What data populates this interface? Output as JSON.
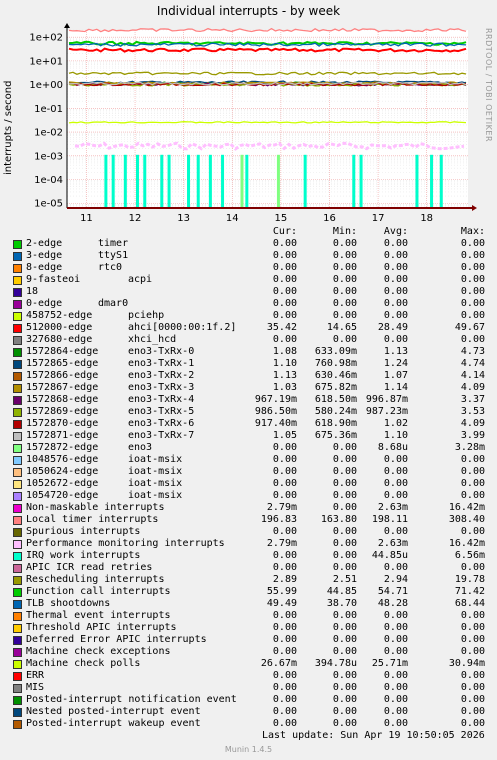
{
  "page": {
    "title": "Individual interrupts - by week",
    "ylabel": "interrupts / second",
    "side_label": "RRDTOOL / TOBI OETIKER",
    "version": "Munin 1.4.5",
    "last_update": "Last update:  Sun Apr 19 10:50:05 2026"
  },
  "legend_header": {
    "cur": "Cur:",
    "min": "Min:",
    "avg": "Avg:",
    "max": "Max:"
  },
  "chart_data": {
    "type": "line",
    "title": "Individual interrupts - by week",
    "ylabel": "interrupts / second",
    "yscale": "log",
    "ylim": [
      6.3e-06,
      200
    ],
    "yticks": [
      {
        "v": 100,
        "label": "1e+02"
      },
      {
        "v": 10,
        "label": "1e+01"
      },
      {
        "v": 1,
        "label": "1e+00"
      },
      {
        "v": 0.1,
        "label": "1e-01"
      },
      {
        "v": 0.01,
        "label": "1e-02"
      },
      {
        "v": 0.001,
        "label": "1e-03"
      },
      {
        "v": 0.0001,
        "label": "1e-04"
      },
      {
        "v": 1e-05,
        "label": "1e-05"
      }
    ],
    "xticks": [
      "11",
      "12",
      "13",
      "14",
      "15",
      "16",
      "17",
      "18"
    ],
    "grid": true,
    "series": [
      {
        "name": "2-edge timer",
        "color": "#00cc00",
        "cur": "0.00",
        "min": "0.00",
        "avg": "0.00",
        "max": "0.00",
        "level": null
      },
      {
        "name": "3-edge ttyS1",
        "color": "#0066b3",
        "cur": "0.00",
        "min": "0.00",
        "avg": "0.00",
        "max": "0.00",
        "level": null
      },
      {
        "name": "8-edge rtc0",
        "color": "#ff8000",
        "cur": "0.00",
        "min": "0.00",
        "avg": "0.00",
        "max": "0.00",
        "level": null
      },
      {
        "name": "9-fasteoi acpi",
        "color": "#ffcc00",
        "cur": "0.00",
        "min": "0.00",
        "avg": "0.00",
        "max": "0.00",
        "level": null
      },
      {
        "name": "18",
        "color": "#330099",
        "cur": "0.00",
        "min": "0.00",
        "avg": "0.00",
        "max": "0.00",
        "level": null
      },
      {
        "name": "0-edge dmar0",
        "color": "#990099",
        "cur": "0.00",
        "min": "0.00",
        "avg": "0.00",
        "max": "0.00",
        "level": null
      },
      {
        "name": "458752-edge pciehp",
        "color": "#ccff00",
        "cur": "0.00",
        "min": "0.00",
        "avg": "0.00",
        "max": "0.00",
        "level": null
      },
      {
        "name": "512000-edge ahci[0000:00:1f.2]",
        "color": "#ff0000",
        "cur": "35.42",
        "min": "14.65",
        "avg": "28.49",
        "max": "49.67",
        "level": 28.49
      },
      {
        "name": "327680-edge xhci_hcd",
        "color": "#808080",
        "cur": "0.00",
        "min": "0.00",
        "avg": "0.00",
        "max": "0.00",
        "level": null
      },
      {
        "name": "1572864-edge eno3-TxRx-0",
        "color": "#008f00",
        "cur": "1.08",
        "min": "633.09m",
        "avg": "1.13",
        "max": "4.73",
        "level": 1.13
      },
      {
        "name": "1572865-edge eno3-TxRx-1",
        "color": "#00487d",
        "cur": "1.10",
        "min": "760.98m",
        "avg": "1.24",
        "max": "4.74",
        "level": 1.24
      },
      {
        "name": "1572866-edge eno3-TxRx-2",
        "color": "#b35a00",
        "cur": "1.13",
        "min": "630.46m",
        "avg": "1.07",
        "max": "4.14",
        "level": 1.07
      },
      {
        "name": "1572867-edge eno3-TxRx-3",
        "color": "#b38f00",
        "cur": "1.03",
        "min": "675.82m",
        "avg": "1.14",
        "max": "4.09",
        "level": 1.14
      },
      {
        "name": "1572868-edge eno3-TxRx-4",
        "color": "#6b006b",
        "cur": "967.19m",
        "min": "618.50m",
        "avg": "996.87m",
        "max": "3.37",
        "level": 0.99687
      },
      {
        "name": "1572869-edge eno3-TxRx-5",
        "color": "#8fb300",
        "cur": "986.50m",
        "min": "580.24m",
        "avg": "987.23m",
        "max": "3.53",
        "level": 0.98723
      },
      {
        "name": "1572870-edge eno3-TxRx-6",
        "color": "#b30000",
        "cur": "917.40m",
        "min": "618.90m",
        "avg": "1.02",
        "max": "4.09",
        "level": 1.02
      },
      {
        "name": "1572871-edge eno3-TxRx-7",
        "color": "#bebebe",
        "cur": "1.05",
        "min": "675.36m",
        "avg": "1.10",
        "max": "3.99",
        "level": 1.1
      },
      {
        "name": "1572872-edge eno3",
        "color": "#80ff80",
        "cur": "0.00",
        "min": "0.00",
        "avg": "8.68u",
        "max": "3.28m",
        "level": null
      },
      {
        "name": "1048576-edge ioat-msix",
        "color": "#80c9ff",
        "cur": "0.00",
        "min": "0.00",
        "avg": "0.00",
        "max": "0.00",
        "level": null
      },
      {
        "name": "1050624-edge ioat-msix",
        "color": "#ffc080",
        "cur": "0.00",
        "min": "0.00",
        "avg": "0.00",
        "max": "0.00",
        "level": null
      },
      {
        "name": "1052672-edge ioat-msix",
        "color": "#ffe680",
        "cur": "0.00",
        "min": "0.00",
        "avg": "0.00",
        "max": "0.00",
        "level": null
      },
      {
        "name": "1054720-edge ioat-msix",
        "color": "#aa80ff",
        "cur": "0.00",
        "min": "0.00",
        "avg": "0.00",
        "max": "0.00",
        "level": null
      },
      {
        "name": "Non-maskable interrupts",
        "color": "#ee00cc",
        "cur": "2.79m",
        "min": "0.00",
        "avg": "2.63m",
        "max": "16.42m",
        "level": null
      },
      {
        "name": "Local timer interrupts",
        "color": "#ff8080",
        "cur": "196.83",
        "min": "163.80",
        "avg": "198.11",
        "max": "308.40",
        "level": 198.11
      },
      {
        "name": "Spurious interrupts",
        "color": "#666600",
        "cur": "0.00",
        "min": "0.00",
        "avg": "0.00",
        "max": "0.00",
        "level": null
      },
      {
        "name": "Performance monitoring interrupts",
        "color": "#ffbfff",
        "cur": "2.79m",
        "min": "0.00",
        "avg": "2.63m",
        "max": "16.42m",
        "level": null
      },
      {
        "name": "IRQ work interrupts",
        "color": "#00ffcc",
        "cur": "0.00",
        "min": "0.00",
        "avg": "44.85u",
        "max": "6.56m",
        "level": null
      },
      {
        "name": "APIC ICR read retries",
        "color": "#cc6699",
        "cur": "0.00",
        "min": "0.00",
        "avg": "0.00",
        "max": "0.00",
        "level": null
      },
      {
        "name": "Rescheduling interrupts",
        "color": "#999900",
        "cur": "2.89",
        "min": "2.51",
        "avg": "2.94",
        "max": "19.78",
        "level": 2.94
      },
      {
        "name": "Function call interrupts",
        "color": "#00cc00",
        "cur": "55.99",
        "min": "44.85",
        "avg": "54.71",
        "max": "71.42",
        "level": 54.71
      },
      {
        "name": "TLB shootdowns",
        "color": "#0066b3",
        "cur": "49.49",
        "min": "38.70",
        "avg": "48.28",
        "max": "68.44",
        "level": 48.28
      },
      {
        "name": "Thermal event interrupts",
        "color": "#ff8000",
        "cur": "0.00",
        "min": "0.00",
        "avg": "0.00",
        "max": "0.00",
        "level": null
      },
      {
        "name": "Threshold APIC interrupts",
        "color": "#ffcc00",
        "cur": "0.00",
        "min": "0.00",
        "avg": "0.00",
        "max": "0.00",
        "level": null
      },
      {
        "name": "Deferred Error APIC interrupts",
        "color": "#330099",
        "cur": "0.00",
        "min": "0.00",
        "avg": "0.00",
        "max": "0.00",
        "level": null
      },
      {
        "name": "Machine check exceptions",
        "color": "#990099",
        "cur": "0.00",
        "min": "0.00",
        "avg": "0.00",
        "max": "0.00",
        "level": null
      },
      {
        "name": "Machine check polls",
        "color": "#ccff00",
        "cur": "26.67m",
        "min": "394.78u",
        "avg": "25.71m",
        "max": "30.94m",
        "level": 0.02571
      },
      {
        "name": "ERR",
        "color": "#ff0000",
        "cur": "0.00",
        "min": "0.00",
        "avg": "0.00",
        "max": "0.00",
        "level": null
      },
      {
        "name": "MIS",
        "color": "#808080",
        "cur": "0.00",
        "min": "0.00",
        "avg": "0.00",
        "max": "0.00",
        "level": null
      },
      {
        "name": "Posted-interrupt notification event",
        "color": "#008f00",
        "cur": "0.00",
        "min": "0.00",
        "avg": "0.00",
        "max": "0.00",
        "level": null
      },
      {
        "name": "Nested posted-interrupt event",
        "color": "#00487d",
        "cur": "0.00",
        "min": "0.00",
        "avg": "0.00",
        "max": "0.00",
        "level": null
      },
      {
        "name": "Posted-interrupt wakeup event",
        "color": "#b35a00",
        "cur": "0.00",
        "min": "0.00",
        "avg": "0.00",
        "max": "0.00",
        "level": null
      }
    ],
    "pmi_level": 0.0026,
    "spikes": [
      {
        "series": "IRQ work interrupts",
        "color": "#00ffcc",
        "x": [
          11.4,
          11.55,
          11.8,
          12.05,
          12.2,
          12.55,
          12.7,
          13.1,
          13.3,
          13.55,
          13.8,
          14.3,
          15.5,
          16.5,
          16.65,
          17.8,
          18.1,
          18.3
        ]
      },
      {
        "series": "1572872-edge eno3",
        "color": "#80ff80",
        "x": [
          14.2,
          14.95
        ]
      }
    ]
  }
}
